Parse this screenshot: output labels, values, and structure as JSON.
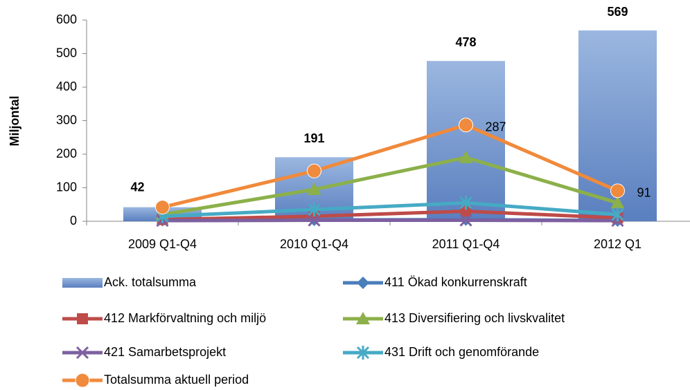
{
  "chart_data": {
    "type": "bar_line",
    "y_label": "Miljontal",
    "categories": [
      "2009 Q1-Q4",
      "2010 Q1-Q4",
      "2011 Q1-Q4",
      "2012 Q1"
    ],
    "ylim": [
      0,
      600
    ],
    "yticks": [
      0,
      100,
      200,
      300,
      400,
      500,
      600
    ],
    "grid": false,
    "series": [
      {
        "name": "Ack. totalsumma",
        "type": "bar",
        "color": "#6f93c9",
        "values": [
          42,
          191,
          478,
          569
        ],
        "show_labels": [
          true,
          true,
          true,
          true
        ]
      },
      {
        "name": "411 Ökad konkurrenskraft",
        "type": "line",
        "marker": "diamond",
        "color": "#4a7ebb",
        "values": [
          3,
          4,
          5,
          2
        ]
      },
      {
        "name": "412 Markförvaltning och miljö",
        "type": "line",
        "marker": "square",
        "color": "#be4b48",
        "values": [
          5,
          15,
          30,
          10
        ]
      },
      {
        "name": "413 Diversifiering och livskvalitet",
        "type": "line",
        "marker": "triangle",
        "color": "#8cb04a",
        "values": [
          20,
          95,
          190,
          55
        ]
      },
      {
        "name": "421 Samarbetsprojekt",
        "type": "line",
        "marker": "x",
        "color": "#7d60a0",
        "values": [
          2,
          3,
          3,
          2
        ]
      },
      {
        "name": "431 Drift och genomförande",
        "type": "line",
        "marker": "star",
        "color": "#46aac5",
        "values": [
          15,
          35,
          55,
          20
        ]
      },
      {
        "name": "Totalsumma aktuell period",
        "type": "line",
        "marker": "circle",
        "color": "#f08a3c",
        "values": [
          42,
          150,
          287,
          91
        ],
        "show_labels": [
          false,
          false,
          true,
          true
        ]
      }
    ]
  }
}
